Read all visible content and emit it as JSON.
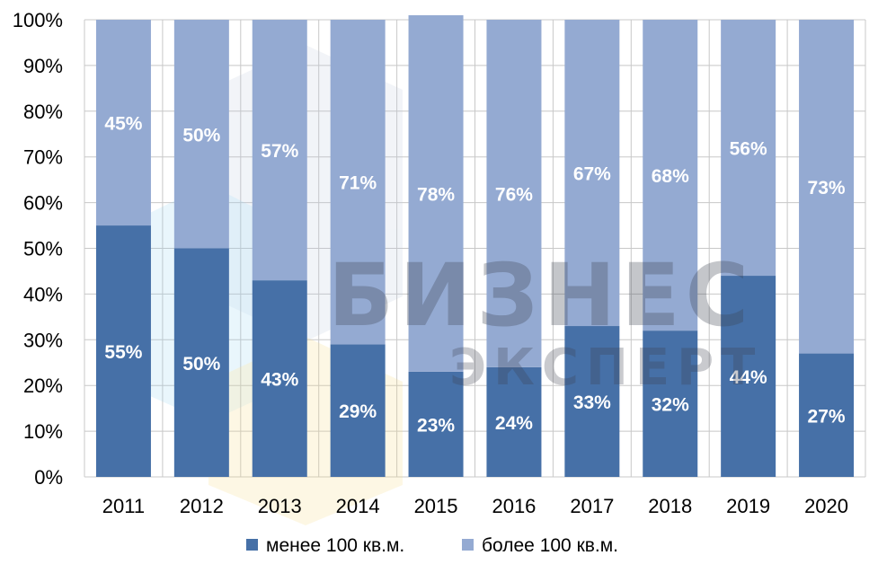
{
  "chart_data": {
    "type": "bar",
    "stacked": true,
    "categories": [
      "2011",
      "2012",
      "2013",
      "2014",
      "2015",
      "2016",
      "2017",
      "2018",
      "2019",
      "2020"
    ],
    "series": [
      {
        "name": "менее 100 кв.м.",
        "color": "#4670a7",
        "values": [
          55,
          50,
          43,
          29,
          23,
          24,
          33,
          32,
          44,
          27
        ],
        "labels": [
          "55%",
          "50%",
          "43%",
          "29%",
          "23%",
          "24%",
          "33%",
          "32%",
          "44%",
          "27%"
        ]
      },
      {
        "name": "более 100 кв.м.",
        "color": "#94aad2",
        "values": [
          45,
          50,
          57,
          71,
          78,
          76,
          67,
          68,
          56,
          73
        ],
        "labels": [
          "45%",
          "50%",
          "57%",
          "71%",
          "78%",
          "76%",
          "67%",
          "68%",
          "56%",
          "73%"
        ]
      }
    ],
    "y_ticks": [
      "0%",
      "10%",
      "20%",
      "30%",
      "40%",
      "50%",
      "60%",
      "70%",
      "80%",
      "90%",
      "100%"
    ],
    "ylim": [
      0,
      100
    ],
    "grid": true,
    "legend_position": "bottom",
    "title": "",
    "xlabel": "",
    "ylabel": ""
  },
  "watermark": {
    "line1": "БИЗНЕС",
    "line2": "ЭКСПЕРТ"
  }
}
